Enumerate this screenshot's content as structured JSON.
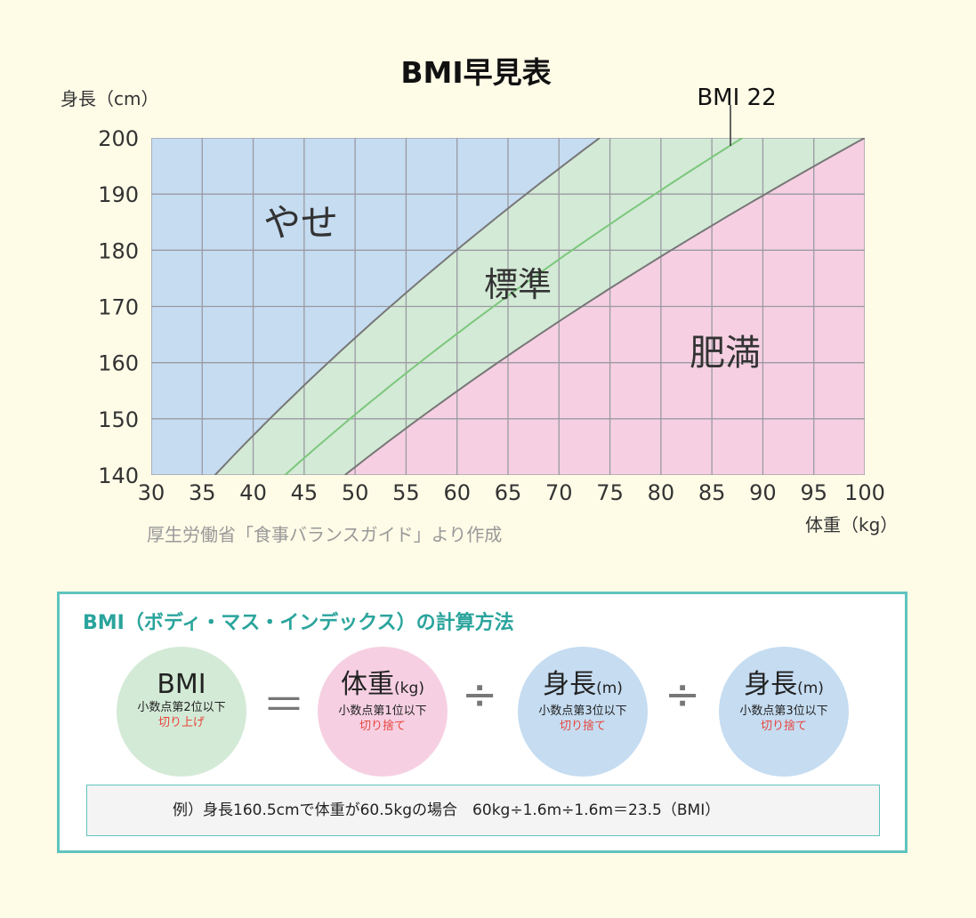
{
  "chart_data": {
    "type": "area",
    "title": "BMI早見表",
    "ylabel": "身長（cm）",
    "xlabel": "体重（kg）",
    "x_ticks": [
      30,
      35,
      40,
      45,
      50,
      55,
      60,
      65,
      70,
      75,
      80,
      85,
      90,
      95,
      100
    ],
    "y_ticks": [
      140,
      150,
      160,
      170,
      180,
      190,
      200
    ],
    "xlim": [
      30,
      100
    ],
    "ylim": [
      140,
      200
    ],
    "grid": true,
    "boundaries": [
      {
        "label": "",
        "bmi": 18.5,
        "color": "#777777"
      },
      {
        "label": "BMI 22",
        "bmi": 22,
        "color": "#7cc77c"
      },
      {
        "label": "",
        "bmi": 25,
        "color": "#777777"
      }
    ],
    "regions": [
      {
        "label": "やせ",
        "color": "#c5dcf1"
      },
      {
        "label": "標準",
        "color": "#d3ead6"
      },
      {
        "label": "肥満",
        "color": "#f6d0e2"
      }
    ],
    "source": "厚生労働省「食事バランスガイド」より作成"
  },
  "formula": {
    "title": "BMI（ボディ・マス・インデックス）の計算方法",
    "bmi": {
      "main": "BMI",
      "sub": "小数点第2位以下",
      "note": "切り上げ",
      "color": "#d3ead6"
    },
    "equals": "＝",
    "weight": {
      "main": "体重",
      "unit": "(kg)",
      "sub": "小数点第1位以下",
      "note": "切り捨て",
      "color": "#f6d0e2"
    },
    "divide": "÷",
    "height1": {
      "main": "身長",
      "unit": "(m)",
      "sub": "小数点第3位以下",
      "note": "切り捨て",
      "color": "#c5dcf1"
    },
    "height2": {
      "main": "身長",
      "unit": "(m)",
      "sub": "小数点第3位以下",
      "note": "切り捨て",
      "color": "#c5dcf1"
    },
    "example": "例）身長160.5cmで体重が60.5kgの場合　60kg÷1.6m÷1.6m＝23.5（BMI）"
  }
}
